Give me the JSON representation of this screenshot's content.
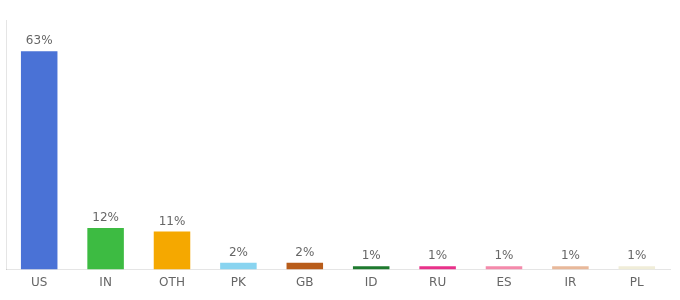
{
  "chart_data": {
    "type": "bar",
    "categories": [
      "US",
      "IN",
      "OTH",
      "PK",
      "GB",
      "ID",
      "RU",
      "ES",
      "IR",
      "PL"
    ],
    "values": [
      63,
      12,
      11,
      2,
      2,
      1,
      1,
      1,
      1,
      1
    ],
    "value_labels": [
      "63%",
      "12%",
      "11%",
      "2%",
      "2%",
      "1%",
      "1%",
      "1%",
      "1%",
      "1%"
    ],
    "colors": [
      "#4a72d6",
      "#3dbb42",
      "#f5a800",
      "#89d4f0",
      "#b85c1a",
      "#1e7a2e",
      "#e8318a",
      "#f48aab",
      "#e8b89a",
      "#f0edd8"
    ],
    "ylim": [
      0,
      72
    ],
    "data_labels": true,
    "tick_labels": "x",
    "grid": false
  }
}
